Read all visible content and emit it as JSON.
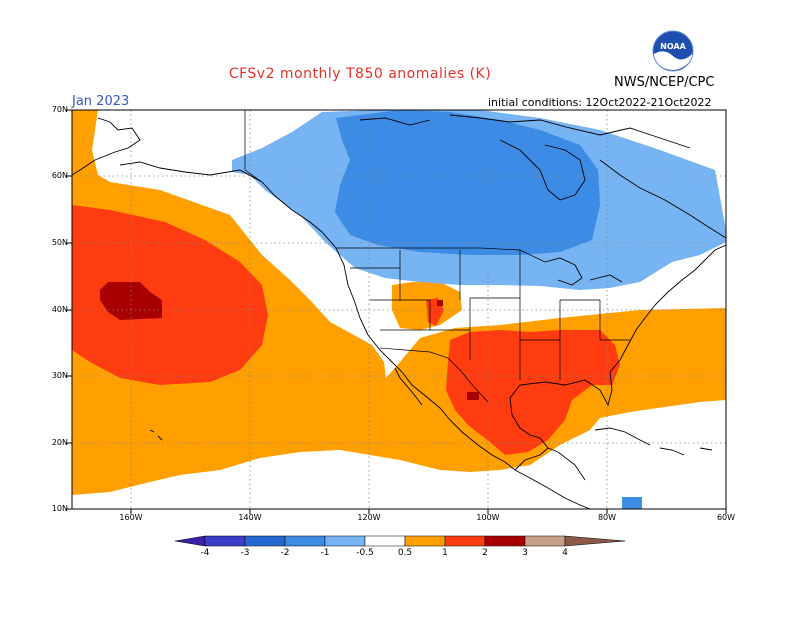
{
  "title": "CFSv2 monthly T850 anomalies (K)",
  "agency": "NWS/NCEP/CPC",
  "logo_text": "NOAA",
  "period": "Jan 2023",
  "initial_conditions": "initial conditions: 12Oct2022-21Oct2022",
  "lat_labels": [
    "70N",
    "60N",
    "50N",
    "40N",
    "30N",
    "20N",
    "10N"
  ],
  "lon_labels": [
    "160W",
    "140W",
    "120W",
    "100W",
    "80W",
    "60W"
  ],
  "colorbar": {
    "labels": [
      "-4",
      "-3",
      "-2",
      "-1",
      "-0.5",
      "0.5",
      "1",
      "2",
      "3",
      "4"
    ],
    "colors": [
      "#3c1ea8",
      "#3a3ec8",
      "#2468d2",
      "#3c8ce6",
      "#76b4f4",
      "#ffffff",
      "#ffa000",
      "#ff3c10",
      "#a80000",
      "#c8a088",
      "#8c5a4a"
    ]
  },
  "map": {
    "lon_range": [
      -170,
      -60
    ],
    "lat_range": [
      10,
      70
    ],
    "colors": {
      "land_line": "#000000",
      "grid": "#888888",
      "light_blue": "#76b4f4",
      "mid_blue": "#3c8ce6",
      "orange": "#ffa000",
      "red": "#ff3c10",
      "dark_red": "#a80000"
    }
  }
}
